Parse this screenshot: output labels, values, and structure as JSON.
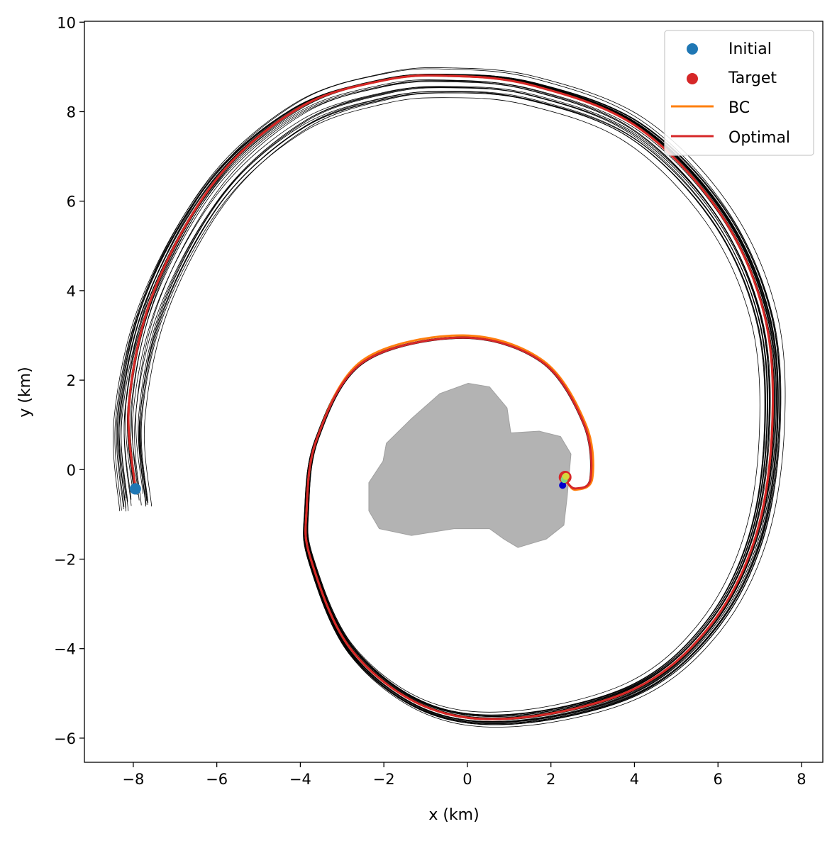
{
  "chart_data": {
    "type": "line",
    "title": "",
    "xlabel": "x (km)",
    "ylabel": "y (km)",
    "xlim": [
      -9.17,
      8.51
    ],
    "ylim": [
      -6.54,
      10.02
    ],
    "xticks": [
      -8,
      -6,
      -4,
      -2,
      0,
      2,
      4,
      6,
      8
    ],
    "yticks": [
      -6,
      -4,
      -2,
      0,
      2,
      4,
      6,
      8,
      10
    ],
    "grid": false,
    "legend": {
      "placement": "top-right",
      "entries": [
        {
          "label": "Initial",
          "kind": "marker",
          "color": "#1f77b4"
        },
        {
          "label": "Target",
          "kind": "marker",
          "color": "#d62728"
        },
        {
          "label": "BC",
          "kind": "line",
          "color": "#ff7f0e"
        },
        {
          "label": "Optimal",
          "kind": "line",
          "color": "#d62728"
        }
      ]
    },
    "initial": {
      "x": -7.95,
      "y": -0.43,
      "color": "#1f77b4"
    },
    "target": {
      "x": 2.34,
      "y": -0.17,
      "color": "#d62728"
    },
    "body_outline": {
      "color": "#b3b3b3",
      "points": [
        [
          -1.94,
          0.59
        ],
        [
          -1.34,
          1.14
        ],
        [
          -0.66,
          1.7
        ],
        [
          0.02,
          1.93
        ],
        [
          0.53,
          1.85
        ],
        [
          0.95,
          1.38
        ],
        [
          1.04,
          0.82
        ],
        [
          1.72,
          0.86
        ],
        [
          2.23,
          0.74
        ],
        [
          2.48,
          0.35
        ],
        [
          2.39,
          -0.6
        ],
        [
          2.31,
          -1.24
        ],
        [
          1.89,
          -1.55
        ],
        [
          1.21,
          -1.74
        ],
        [
          0.87,
          -1.55
        ],
        [
          0.53,
          -1.32
        ],
        [
          -0.32,
          -1.32
        ],
        [
          -1.34,
          -1.47
        ],
        [
          -2.11,
          -1.32
        ],
        [
          -2.36,
          -0.92
        ],
        [
          -2.36,
          -0.29
        ],
        [
          -2.02,
          0.19
        ]
      ]
    },
    "series": [
      {
        "name": "Optimal",
        "color": "#d62728",
        "points": [
          [
            -7.95,
            -0.43
          ],
          [
            -8.1,
            1.5
          ],
          [
            -7.5,
            4.0
          ],
          [
            -6.0,
            6.5
          ],
          [
            -4.0,
            8.1
          ],
          [
            -2.0,
            8.7
          ],
          [
            -0.5,
            8.8
          ],
          [
            1.5,
            8.6
          ],
          [
            4.0,
            7.7
          ],
          [
            6.0,
            5.8
          ],
          [
            7.1,
            3.5
          ],
          [
            7.3,
            1.0
          ],
          [
            6.9,
            -1.5
          ],
          [
            5.8,
            -3.5
          ],
          [
            4.0,
            -4.9
          ],
          [
            1.2,
            -5.55
          ],
          [
            -1.0,
            -5.3
          ],
          [
            -2.8,
            -4.0
          ],
          [
            -3.75,
            -2.0
          ],
          [
            -3.85,
            -0.9
          ],
          [
            -3.6,
            0.7
          ],
          [
            -2.5,
            2.4
          ],
          [
            -0.1,
            2.95
          ],
          [
            1.8,
            2.4
          ],
          [
            2.8,
            1.0
          ],
          [
            2.95,
            -0.2
          ],
          [
            2.6,
            -0.42
          ],
          [
            2.4,
            -0.3
          ],
          [
            2.34,
            -0.17
          ]
        ]
      },
      {
        "name": "BC",
        "color": "#ff7f0e",
        "points": [
          [
            -7.95,
            -0.43
          ],
          [
            -8.1,
            1.5
          ],
          [
            -7.5,
            4.0
          ],
          [
            -6.0,
            6.5
          ],
          [
            -4.0,
            8.1
          ],
          [
            -2.0,
            8.7
          ],
          [
            -0.5,
            8.8
          ],
          [
            1.5,
            8.6
          ],
          [
            4.0,
            7.7
          ],
          [
            6.0,
            5.8
          ],
          [
            7.1,
            3.5
          ],
          [
            7.3,
            1.0
          ],
          [
            6.9,
            -1.5
          ],
          [
            5.8,
            -3.5
          ],
          [
            4.0,
            -4.9
          ],
          [
            1.2,
            -5.55
          ],
          [
            -1.0,
            -5.3
          ],
          [
            -2.8,
            -4.0
          ],
          [
            -3.75,
            -2.0
          ],
          [
            -3.85,
            -0.9
          ],
          [
            -3.6,
            0.7
          ],
          [
            -2.5,
            2.45
          ],
          [
            -0.1,
            3.0
          ],
          [
            1.82,
            2.43
          ],
          [
            2.84,
            1.0
          ],
          [
            2.99,
            -0.2
          ],
          [
            2.6,
            -0.45
          ],
          [
            2.4,
            -0.3
          ],
          [
            2.34,
            -0.17
          ]
        ]
      }
    ],
    "samples": {
      "count": 30,
      "color": "#000000"
    },
    "end_markers": [
      {
        "x": 2.28,
        "y": -0.35,
        "color": "#0000cc"
      },
      {
        "x": 2.32,
        "y": -0.22,
        "color": "#7fd67f"
      },
      {
        "x": 2.36,
        "y": -0.15,
        "color": "#d6d63a"
      }
    ]
  }
}
